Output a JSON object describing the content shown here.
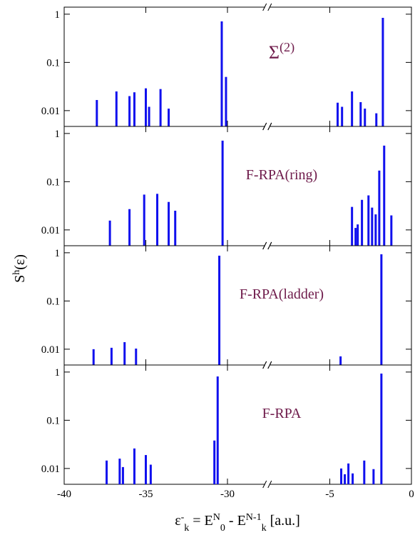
{
  "figure": {
    "xlabel": [
      {
        "text": "ε"
      },
      {
        "text": "-",
        "pos": "sup"
      },
      {
        "text": "k",
        "pos": "sub"
      },
      {
        "text": " = E"
      },
      {
        "text": "N",
        "pos": "sup"
      },
      {
        "text": "0",
        "pos": "sub"
      },
      {
        "text": " - E"
      },
      {
        "text": "N-1",
        "pos": "sup"
      },
      {
        "text": "k",
        "pos": "sub"
      },
      {
        "text": " [a.u.]"
      }
    ],
    "ylabel": [
      {
        "text": "S"
      },
      {
        "text": "h",
        "pos": "sup"
      },
      {
        "text": "(ε)"
      }
    ]
  },
  "chart_data": [
    {
      "type": "bar",
      "annotation": [
        {
          "text": "Σ"
        },
        {
          "text": "(2)",
          "pos": "sup"
        }
      ],
      "color": "#1010ee",
      "log_y": true,
      "xlim": [
        -40,
        0
      ],
      "xbreak": [
        -27.7,
        -8.7
      ],
      "ylim": [
        0.0047,
        1.4
      ],
      "yticks": [
        0.01,
        0.1,
        1
      ],
      "x": [
        -38.0,
        -36.8,
        -36.0,
        -35.7,
        -35.0,
        -34.8,
        -34.1,
        -33.6,
        -30.35,
        -30.09,
        -4.52,
        -4.25,
        -3.64,
        -3.11,
        -2.85,
        -2.15,
        -1.75
      ],
      "values": [
        0.0166,
        0.025,
        0.02,
        0.024,
        0.029,
        0.012,
        0.028,
        0.011,
        0.71,
        0.05,
        0.0146,
        0.012,
        0.025,
        0.015,
        0.011,
        0.0088,
        0.84
      ]
    },
    {
      "type": "bar",
      "annotation": [
        {
          "text": "F-RPA(ring)"
        }
      ],
      "color": "#1010ee",
      "log_y": true,
      "xlim": [
        -40,
        0
      ],
      "xbreak": [
        -27.7,
        -8.7
      ],
      "ylim": [
        0.0047,
        1.4
      ],
      "yticks": [
        0.01,
        0.1,
        1
      ],
      "x": [
        -37.2,
        -36.0,
        -35.1,
        -34.3,
        -33.6,
        -33.2,
        -30.3,
        -3.64,
        -3.42,
        -3.29,
        -3.03,
        -2.63,
        -2.41,
        -2.19,
        -1.97,
        -1.67,
        -1.23
      ],
      "values": [
        0.0156,
        0.027,
        0.054,
        0.056,
        0.038,
        0.025,
        0.71,
        0.03,
        0.011,
        0.013,
        0.042,
        0.052,
        0.029,
        0.021,
        0.17,
        0.56,
        0.02
      ]
    },
    {
      "type": "bar",
      "annotation": [
        {
          "text": "F-RPA(ladder)"
        }
      ],
      "color": "#1010ee",
      "log_y": true,
      "xlim": [
        -40,
        0
      ],
      "xbreak": [
        -27.7,
        -8.7
      ],
      "ylim": [
        0.0047,
        1.4
      ],
      "yticks": [
        0.01,
        0.1,
        1
      ],
      "x": [
        -38.2,
        -37.1,
        -36.3,
        -35.6,
        -30.5,
        -4.34,
        -1.84
      ],
      "values": [
        0.01,
        0.0107,
        0.014,
        0.0103,
        0.87,
        0.0071,
        0.93
      ]
    },
    {
      "type": "bar",
      "annotation": [
        {
          "text": "F-RPA"
        }
      ],
      "color": "#1010ee",
      "log_y": true,
      "xlim": [
        -40,
        0
      ],
      "xbreak": [
        -27.7,
        -8.7
      ],
      "ylim": [
        0.0047,
        1.4
      ],
      "yticks": [
        0.01,
        0.1,
        1
      ],
      "xticks": [
        -40,
        -35,
        -30,
        -5,
        0
      ],
      "x": [
        -37.4,
        -36.6,
        -36.4,
        -35.7,
        -35.0,
        -34.7,
        -30.8,
        -30.6,
        -4.3,
        -4.08,
        -3.86,
        -3.6,
        -2.89,
        -2.32,
        -1.84
      ],
      "values": [
        0.0146,
        0.016,
        0.0107,
        0.026,
        0.019,
        0.012,
        0.038,
        0.81,
        0.01,
        0.0076,
        0.0127,
        0.0079,
        0.0146,
        0.0097,
        0.93
      ]
    }
  ]
}
